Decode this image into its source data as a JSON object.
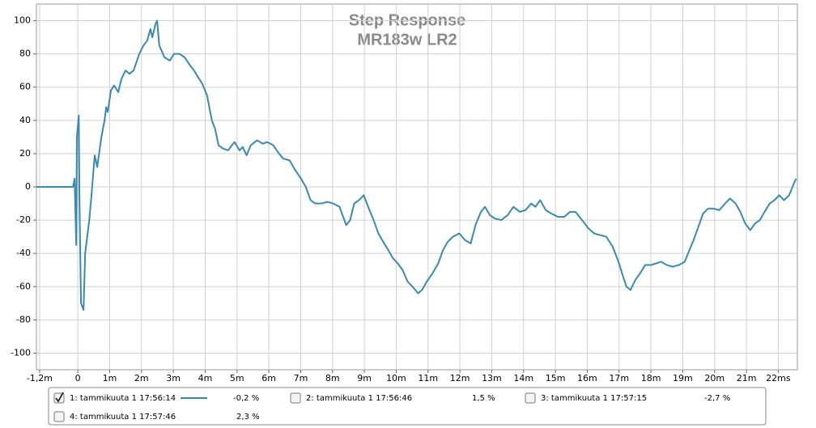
{
  "chart_data": {
    "type": "line",
    "title": "Step Response",
    "subtitle": "MR183w LR2",
    "xlim": [
      -1.3,
      22.6
    ],
    "ylim": [
      -110,
      110
    ],
    "xticks": [
      {
        "value": -1.2,
        "label": "-1,2m"
      },
      0,
      {
        "value": 1,
        "label": "1m"
      },
      {
        "value": 2,
        "label": "2m"
      },
      {
        "value": 3,
        "label": "3m"
      },
      {
        "value": 4,
        "label": "4m"
      },
      {
        "value": 5,
        "label": "5m"
      },
      {
        "value": 6,
        "label": "6m"
      },
      {
        "value": 7,
        "label": "7m"
      },
      {
        "value": 8,
        "label": "8m"
      },
      {
        "value": 9,
        "label": "9m"
      },
      {
        "value": 10,
        "label": "10m"
      },
      {
        "value": 11,
        "label": "11m"
      },
      {
        "value": 12,
        "label": "12m"
      },
      {
        "value": 13,
        "label": "13m"
      },
      {
        "value": 14,
        "label": "14m"
      },
      {
        "value": 15,
        "label": "15m"
      },
      {
        "value": 16,
        "label": "16m"
      },
      {
        "value": 17,
        "label": "17m"
      },
      {
        "value": 18,
        "label": "18m"
      },
      {
        "value": 19,
        "label": "19m"
      },
      {
        "value": 20,
        "label": "20m"
      },
      {
        "value": 21,
        "label": "21m"
      },
      {
        "value": 22,
        "label": "22ms"
      }
    ],
    "yticks": [
      -100,
      -80,
      -60,
      -40,
      -20,
      0,
      20,
      40,
      60,
      80,
      100
    ],
    "grid": true,
    "x": [
      -1.3,
      -0.15,
      -0.1,
      -0.05,
      -0.03,
      0.03,
      0.05,
      0.1,
      0.18,
      0.23,
      0.36,
      0.43,
      0.53,
      0.61,
      0.74,
      0.84,
      0.89,
      0.94,
      1.04,
      1.14,
      1.27,
      1.37,
      1.5,
      1.62,
      1.75,
      1.93,
      2.06,
      2.18,
      2.28,
      2.34,
      2.44,
      2.49,
      2.56,
      2.72,
      2.89,
      3.02,
      3.2,
      3.35,
      3.53,
      3.65,
      3.81,
      3.91,
      4.06,
      4.21,
      4.31,
      4.42,
      4.57,
      4.72,
      4.92,
      5.08,
      5.18,
      5.3,
      5.43,
      5.63,
      5.81,
      5.94,
      6.14,
      6.32,
      6.45,
      6.65,
      6.83,
      7.01,
      7.16,
      7.31,
      7.46,
      7.64,
      7.84,
      8.02,
      8.22,
      8.43,
      8.55,
      8.68,
      8.83,
      8.98,
      9.14,
      9.29,
      9.44,
      9.59,
      9.75,
      9.9,
      10.05,
      10.2,
      10.36,
      10.51,
      10.69,
      10.81,
      10.96,
      11.14,
      11.32,
      11.47,
      11.62,
      11.78,
      11.98,
      12.16,
      12.34,
      12.49,
      12.66,
      12.79,
      12.94,
      13.1,
      13.3,
      13.5,
      13.68,
      13.88,
      14.06,
      14.24,
      14.37,
      14.52,
      14.7,
      14.87,
      15.08,
      15.28,
      15.46,
      15.63,
      15.84,
      16.04,
      16.22,
      16.4,
      16.6,
      16.8,
      16.98,
      17.11,
      17.23,
      17.36,
      17.51,
      17.66,
      17.82,
      18.0,
      18.17,
      18.32,
      18.5,
      18.68,
      18.88,
      19.06,
      19.21,
      19.34,
      19.49,
      19.64,
      19.8,
      19.95,
      20.15,
      20.33,
      20.48,
      20.66,
      20.81,
      20.96,
      21.12,
      21.27,
      21.42,
      21.57,
      21.73,
      21.88,
      22.03,
      22.18,
      22.34,
      22.49,
      22.56
    ],
    "series": [
      {
        "color": "#3a8ab0",
        "values": [
          0,
          0,
          5,
          -35,
          30,
          43,
          -5,
          -70,
          -74,
          -40,
          -20,
          -5,
          19,
          12,
          30,
          40,
          48,
          45,
          58,
          61,
          57,
          65,
          70,
          68,
          70,
          80,
          85,
          88,
          95,
          90,
          98,
          100,
          85,
          78,
          76,
          80,
          80,
          78,
          73,
          70,
          65,
          62,
          55,
          40,
          35,
          25,
          23,
          22,
          27,
          22,
          24,
          19,
          25,
          28,
          26,
          27,
          25,
          20,
          17,
          16,
          10,
          5,
          0,
          -8,
          -10,
          -10,
          -9,
          -10,
          -12,
          -23,
          -20,
          -10,
          -8,
          -5,
          -13,
          -20,
          -28,
          -33,
          -38,
          -43,
          -46,
          -50,
          -57,
          -60,
          -64,
          -62,
          -57,
          -52,
          -46,
          -38,
          -33,
          -30,
          -28,
          -32,
          -34,
          -23,
          -15,
          -12,
          -17,
          -19,
          -20,
          -17,
          -12,
          -15,
          -14,
          -10,
          -12,
          -8,
          -14,
          -16,
          -18,
          -18,
          -15,
          -15,
          -20,
          -25,
          -28,
          -29,
          -30,
          -36,
          -45,
          -53,
          -60,
          -62,
          -56,
          -52,
          -47,
          -47,
          -46,
          -45,
          -47,
          -48,
          -47,
          -45,
          -38,
          -32,
          -24,
          -16,
          -13,
          -13,
          -14,
          -10,
          -7,
          -10,
          -15,
          -22,
          -26,
          -22,
          -20,
          -15,
          -10,
          -8,
          -5,
          -8,
          -5,
          2,
          5
        ]
      }
    ],
    "legend": [
      {
        "label": "1: tammikuuta 1 17:56:14",
        "offset": "-0,2 %",
        "color": "#3a8ab0",
        "checked": true
      },
      {
        "label": "2: tammikuuta 1 17:56:46",
        "offset": "1,5 %",
        "color": "#a01818",
        "checked": false
      },
      {
        "label": "3: tammikuuta 1 17:57:15",
        "offset": "-2,7 %",
        "color": "#2a8a2a",
        "checked": false
      },
      {
        "label": "4: tammikuuta 1 17:57:46",
        "offset": "2,3 %",
        "color": "#3a3a9a",
        "checked": false
      }
    ]
  }
}
